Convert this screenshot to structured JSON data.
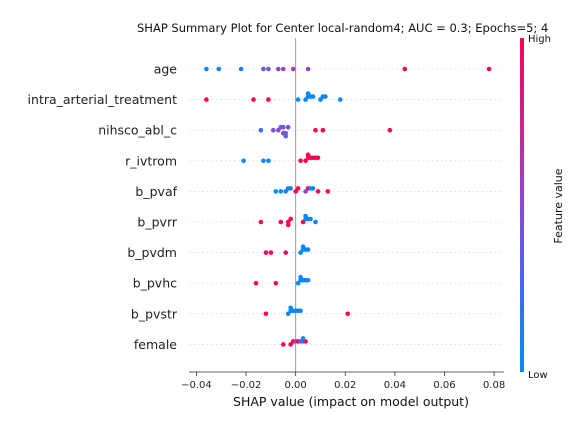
{
  "chart_data": {
    "type": "scatter",
    "title": "SHAP Summary Plot for Center local-random4; AUC = 0.3; Epochs=5; 4",
    "xlabel": "SHAP value (impact on model output)",
    "xlim": [
      -0.043,
      0.084
    ],
    "xticks": [
      -0.04,
      -0.02,
      0.0,
      0.02,
      0.04,
      0.06,
      0.08
    ],
    "xtick_labels": [
      "−0.04",
      "−0.02",
      "0.00",
      "0.02",
      "0.04",
      "0.06",
      "0.08"
    ],
    "colorbar": {
      "label": "Feature value",
      "high": "High",
      "low": "Low"
    },
    "colors": {
      "low": "#008afb",
      "mid": "#8a4bd0",
      "high": "#ff0052"
    },
    "features": [
      {
        "name": "age",
        "points": [
          {
            "x": -0.036,
            "v": 0.0
          },
          {
            "x": -0.031,
            "v": 0.05
          },
          {
            "x": -0.022,
            "v": 0.1
          },
          {
            "x": -0.013,
            "v": 0.4
          },
          {
            "x": -0.011,
            "v": 0.45
          },
          {
            "x": -0.007,
            "v": 0.5
          },
          {
            "x": -0.005,
            "v": 0.55
          },
          {
            "x": -0.001,
            "v": 0.6
          },
          {
            "x": 0.005,
            "v": 0.55
          },
          {
            "x": 0.044,
            "v": 1.0
          },
          {
            "x": 0.078,
            "v": 1.0
          }
        ]
      },
      {
        "name": "intra_arterial_treatment",
        "points": [
          {
            "x": -0.036,
            "v": 1.0
          },
          {
            "x": -0.017,
            "v": 1.0
          },
          {
            "x": -0.011,
            "v": 1.0
          },
          {
            "x": 0.001,
            "v": 0.0
          },
          {
            "x": 0.004,
            "v": 0.05
          },
          {
            "x": 0.005,
            "v": 0.0
          },
          {
            "x": 0.006,
            "v": 0.05
          },
          {
            "x": 0.007,
            "v": 0.0
          },
          {
            "x": 0.01,
            "v": 0.05
          },
          {
            "x": 0.011,
            "v": 0.0
          },
          {
            "x": 0.012,
            "v": 0.05
          },
          {
            "x": 0.018,
            "v": 0.0
          },
          {
            "x": 0.005,
            "v": 0.0
          }
        ]
      },
      {
        "name": "nihsco_abl_c",
        "points": [
          {
            "x": -0.014,
            "v": 0.2
          },
          {
            "x": -0.009,
            "v": 0.4
          },
          {
            "x": -0.007,
            "v": 0.5
          },
          {
            "x": -0.006,
            "v": 0.45
          },
          {
            "x": -0.005,
            "v": 0.3
          },
          {
            "x": -0.005,
            "v": 0.6
          },
          {
            "x": -0.004,
            "v": 0.45
          },
          {
            "x": -0.003,
            "v": 0.55
          },
          {
            "x": -0.004,
            "v": 0.25
          },
          {
            "x": 0.008,
            "v": 1.0
          },
          {
            "x": 0.011,
            "v": 1.0
          },
          {
            "x": 0.038,
            "v": 1.0
          }
        ]
      },
      {
        "name": "r_ivtrom",
        "points": [
          {
            "x": -0.021,
            "v": 0.0
          },
          {
            "x": -0.013,
            "v": 0.05
          },
          {
            "x": -0.011,
            "v": 0.0
          },
          {
            "x": 0.002,
            "v": 1.0
          },
          {
            "x": 0.004,
            "v": 1.0
          },
          {
            "x": 0.005,
            "v": 1.0
          },
          {
            "x": 0.006,
            "v": 1.0
          },
          {
            "x": 0.007,
            "v": 1.0
          },
          {
            "x": 0.008,
            "v": 1.0
          },
          {
            "x": 0.009,
            "v": 1.0
          },
          {
            "x": 0.005,
            "v": 1.0
          }
        ]
      },
      {
        "name": "b_pvaf",
        "points": [
          {
            "x": -0.008,
            "v": 0.0
          },
          {
            "x": -0.006,
            "v": 0.0
          },
          {
            "x": -0.004,
            "v": 0.05
          },
          {
            "x": -0.003,
            "v": 0.0
          },
          {
            "x": -0.002,
            "v": 0.1
          },
          {
            "x": 0.0,
            "v": 1.0
          },
          {
            "x": 0.001,
            "v": 1.0
          },
          {
            "x": 0.004,
            "v": 0.5
          },
          {
            "x": 0.005,
            "v": 1.0
          },
          {
            "x": 0.006,
            "v": 0.0
          },
          {
            "x": 0.009,
            "v": 1.0
          },
          {
            "x": 0.013,
            "v": 1.0
          },
          {
            "x": 0.007,
            "v": 0.05
          }
        ]
      },
      {
        "name": "b_pvrr",
        "points": [
          {
            "x": -0.014,
            "v": 1.0
          },
          {
            "x": -0.006,
            "v": 1.0
          },
          {
            "x": -0.003,
            "v": 1.0
          },
          {
            "x": -0.002,
            "v": 1.0
          },
          {
            "x": -0.003,
            "v": 1.0
          },
          {
            "x": 0.003,
            "v": 1.0
          },
          {
            "x": 0.004,
            "v": 0.0
          },
          {
            "x": 0.005,
            "v": 0.05
          },
          {
            "x": 0.006,
            "v": 0.0
          },
          {
            "x": 0.008,
            "v": 0.05
          },
          {
            "x": 0.004,
            "v": 0.0
          }
        ]
      },
      {
        "name": "b_pvdm",
        "points": [
          {
            "x": -0.012,
            "v": 1.0
          },
          {
            "x": -0.01,
            "v": 1.0
          },
          {
            "x": -0.004,
            "v": 1.0
          },
          {
            "x": 0.002,
            "v": 0.0
          },
          {
            "x": 0.003,
            "v": 0.05
          },
          {
            "x": 0.004,
            "v": 0.0
          },
          {
            "x": 0.005,
            "v": 0.05
          },
          {
            "x": 0.003,
            "v": 0.0
          }
        ]
      },
      {
        "name": "b_pvhc",
        "points": [
          {
            "x": -0.016,
            "v": 1.0
          },
          {
            "x": -0.008,
            "v": 1.0
          },
          {
            "x": 0.001,
            "v": 0.0
          },
          {
            "x": 0.002,
            "v": 0.05
          },
          {
            "x": 0.003,
            "v": 0.0
          },
          {
            "x": 0.004,
            "v": 0.05
          },
          {
            "x": 0.005,
            "v": 0.0
          },
          {
            "x": 0.002,
            "v": 0.0
          }
        ]
      },
      {
        "name": "b_pvstr",
        "points": [
          {
            "x": -0.012,
            "v": 1.0
          },
          {
            "x": -0.003,
            "v": 0.0
          },
          {
            "x": -0.002,
            "v": 0.05
          },
          {
            "x": -0.001,
            "v": 0.1
          },
          {
            "x": 0.0,
            "v": 0.0
          },
          {
            "x": 0.001,
            "v": 0.05
          },
          {
            "x": 0.002,
            "v": 0.0
          },
          {
            "x": 0.021,
            "v": 1.0
          },
          {
            "x": -0.002,
            "v": 0.0
          }
        ]
      },
      {
        "name": "female",
        "points": [
          {
            "x": -0.005,
            "v": 1.0
          },
          {
            "x": -0.002,
            "v": 1.0
          },
          {
            "x": -0.001,
            "v": 1.0
          },
          {
            "x": 0.0,
            "v": 0.5
          },
          {
            "x": 0.001,
            "v": 1.0
          },
          {
            "x": 0.002,
            "v": 0.5
          },
          {
            "x": 0.003,
            "v": 0.0
          },
          {
            "x": 0.004,
            "v": 1.0
          },
          {
            "x": 0.003,
            "v": 0.0
          }
        ]
      }
    ]
  }
}
